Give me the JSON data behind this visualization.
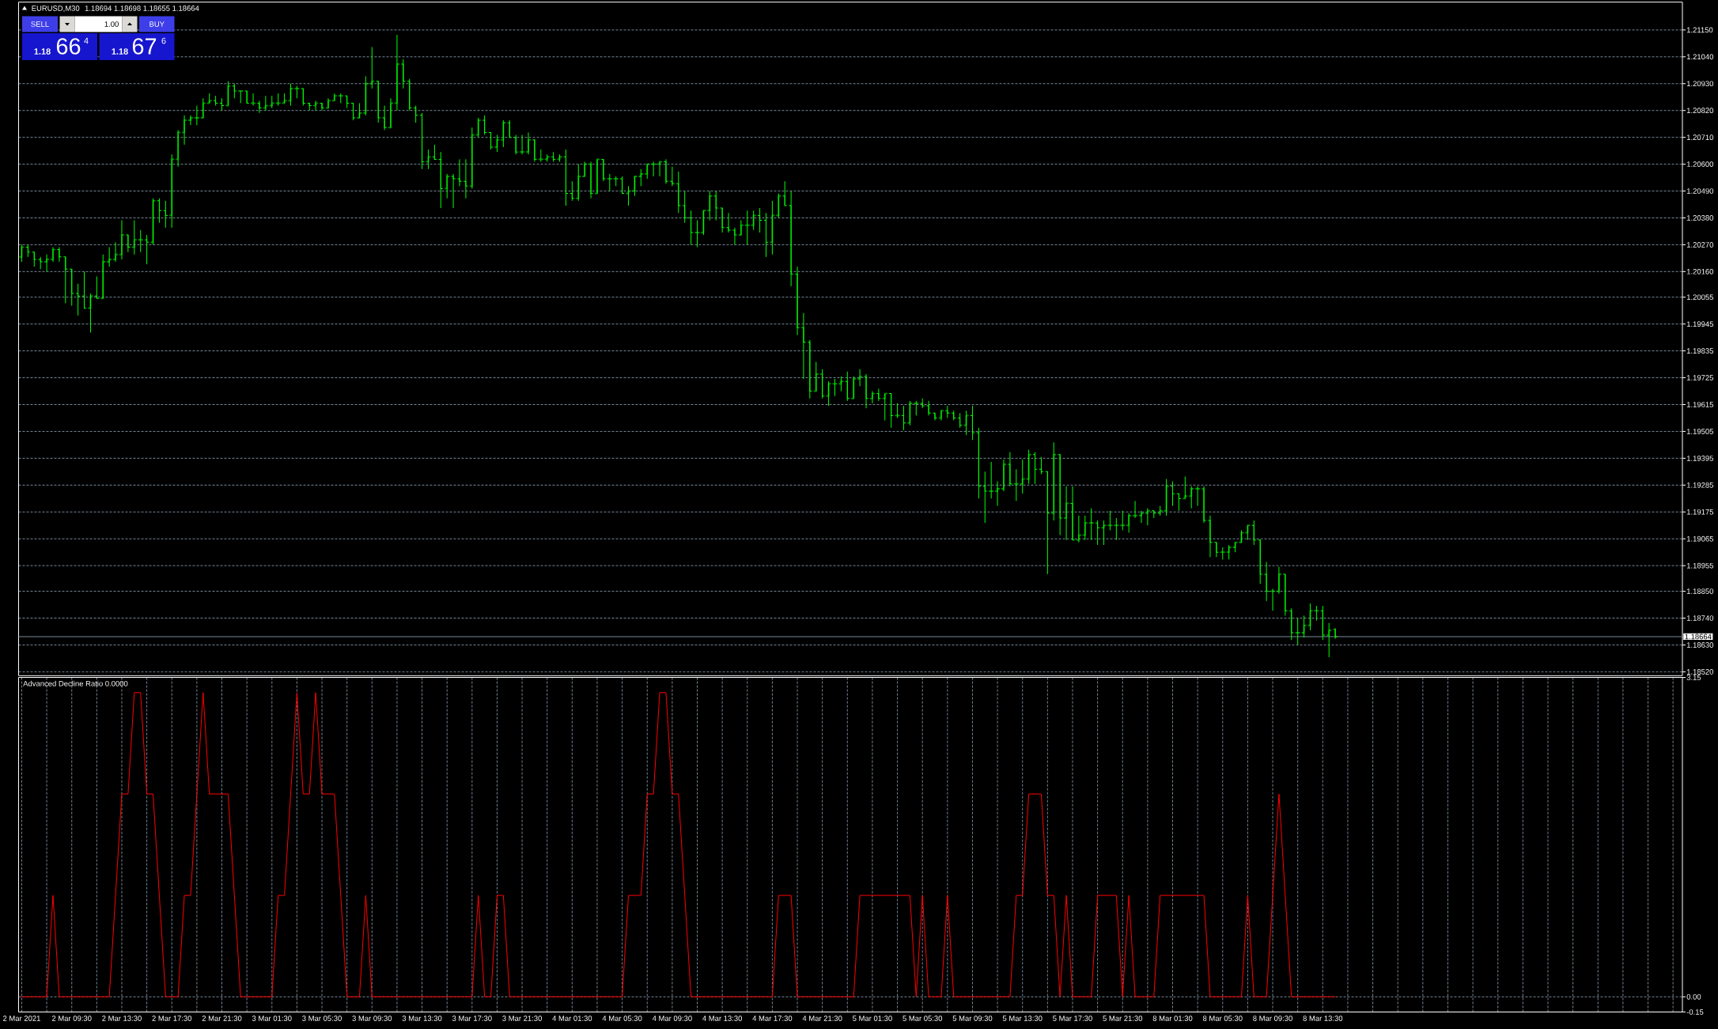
{
  "chart_data": [
    {
      "type": "candlestick",
      "title": "EURUSD,M30",
      "subtitle": "1.18694 1.18698 1.18655 1.18664",
      "categories": [
        null,
        null,
        null,
        null,
        null,
        null,
        null,
        null,
        null,
        null,
        null,
        null,
        null,
        null,
        null,
        null,
        null,
        null,
        null,
        null,
        null,
        null,
        null,
        null,
        null,
        null,
        null,
        null,
        null,
        null,
        null,
        null,
        null,
        null,
        null,
        null,
        null,
        null,
        null,
        null,
        null,
        null,
        null,
        null,
        null,
        null,
        null,
        null,
        null,
        null,
        null,
        null,
        null,
        null,
        null,
        null,
        null,
        null,
        null,
        null,
        null,
        null,
        null,
        null,
        null,
        null,
        null,
        null,
        null,
        null,
        null,
        null,
        null,
        null,
        null,
        null,
        null,
        null,
        null,
        null,
        null,
        null,
        null,
        null,
        null,
        null,
        null,
        null,
        null,
        null,
        null,
        null,
        null,
        null,
        null,
        null,
        null,
        null,
        null,
        null,
        null,
        null,
        null,
        null,
        null,
        null,
        null,
        null,
        null,
        null,
        null,
        null,
        null,
        null,
        null,
        null,
        null,
        null,
        null,
        null,
        null,
        null,
        null,
        null,
        null,
        null,
        null,
        null,
        null,
        null,
        null,
        null,
        null,
        null,
        null,
        null,
        null,
        null,
        null,
        null,
        null,
        null,
        null,
        null,
        null,
        null,
        null,
        null,
        null,
        null,
        null,
        null,
        null,
        null,
        null,
        null,
        null,
        null,
        null,
        null,
        null,
        null,
        null,
        null,
        null,
        null,
        null,
        null,
        null,
        null,
        null,
        null,
        null,
        null,
        null,
        null,
        null,
        null,
        null,
        null,
        null,
        null,
        null,
        null,
        null,
        null,
        null,
        null,
        null,
        null,
        null,
        null,
        null,
        null,
        null,
        null,
        null,
        null,
        null,
        null,
        null,
        null,
        null,
        null,
        null,
        null,
        null,
        null,
        null,
        null,
        null,
        null,
        null,
        null,
        null,
        null,
        null,
        null,
        null,
        null,
        null,
        null,
        null,
        null,
        null,
        null,
        null,
        null,
        null,
        null,
        null,
        null,
        null,
        null,
        null,
        null,
        null,
        null,
        null,
        null,
        null,
        null,
        null,
        null,
        null,
        null,
        null,
        null,
        null,
        null,
        null,
        null,
        null,
        null,
        null,
        null,
        null,
        null,
        null,
        null,
        null,
        null,
        null,
        null,
        null,
        null
      ],
      "ohlc": [
        [
          1.2022,
          1.2027,
          1.202,
          1.2026
        ],
        [
          1.2026,
          1.2027,
          1.2022,
          1.2024
        ],
        [
          1.2024,
          1.2024,
          1.2018,
          1.2021
        ],
        [
          1.2021,
          1.2022,
          1.2017,
          1.202
        ],
        [
          1.202,
          1.2023,
          1.2016,
          1.2021
        ],
        [
          1.2021,
          1.2026,
          1.202,
          1.2025
        ],
        [
          1.2025,
          1.2026,
          1.202,
          1.2022
        ],
        [
          1.2022,
          1.2022,
          1.2003,
          1.2017
        ],
        [
          1.2017,
          1.2017,
          1.2002,
          1.2007
        ],
        [
          1.2007,
          1.2011,
          1.1998,
          1.2006
        ],
        [
          1.2006,
          1.2016,
          1.2001,
          1.2001
        ],
        [
          1.2001,
          1.2007,
          1.1991,
          1.2006
        ],
        [
          1.2006,
          1.2014,
          1.2005,
          1.2005
        ],
        [
          1.2005,
          1.2023,
          1.2005,
          1.202
        ],
        [
          1.202,
          1.2026,
          1.2018,
          1.2021
        ],
        [
          1.2021,
          1.2028,
          1.202,
          1.2023
        ],
        [
          1.2023,
          1.2037,
          1.2021,
          1.2031
        ],
        [
          1.2031,
          1.2031,
          1.2024,
          1.2026
        ],
        [
          1.2026,
          1.2037,
          1.2023,
          1.2029
        ],
        [
          1.2029,
          1.2033,
          1.2024,
          1.2029
        ],
        [
          1.2029,
          1.2031,
          1.2019,
          1.2028
        ],
        [
          1.2028,
          1.2046,
          1.2027,
          1.2045
        ],
        [
          1.2045,
          1.2046,
          1.2036,
          1.2041
        ],
        [
          1.2041,
          1.2045,
          1.2034,
          1.2039
        ],
        [
          1.2039,
          1.2064,
          1.2034,
          1.2062
        ],
        [
          1.2062,
          1.2074,
          1.2059,
          1.2073
        ],
        [
          1.2073,
          1.208,
          1.2068,
          1.2078
        ],
        [
          1.2078,
          1.208,
          1.2076,
          1.2079
        ],
        [
          1.2079,
          1.2084,
          1.2076,
          1.2079
        ],
        [
          1.2079,
          1.2087,
          1.2079,
          1.2085
        ],
        [
          1.2085,
          1.2089,
          1.2085,
          1.2086
        ],
        [
          1.2086,
          1.2088,
          1.2084,
          1.2085
        ],
        [
          1.2085,
          1.2087,
          1.2082,
          1.2084
        ],
        [
          1.2084,
          1.2094,
          1.2084,
          1.2092
        ],
        [
          1.2092,
          1.2093,
          1.2087,
          1.209
        ],
        [
          1.209,
          1.209,
          1.2085,
          1.209
        ],
        [
          1.209,
          1.209,
          1.2085,
          1.2085
        ],
        [
          1.2085,
          1.2089,
          1.2084,
          1.2085
        ],
        [
          1.2085,
          1.2086,
          1.2081,
          1.2083
        ],
        [
          1.2083,
          1.2088,
          1.2082,
          1.2084
        ],
        [
          1.2084,
          1.2088,
          1.2083,
          1.2085
        ],
        [
          1.2085,
          1.2089,
          1.2084,
          1.2085
        ],
        [
          1.2085,
          1.2089,
          1.2085,
          1.2086
        ],
        [
          1.2086,
          1.2093,
          1.2084,
          1.2091
        ],
        [
          1.2091,
          1.2092,
          1.2087,
          1.2091
        ],
        [
          1.2091,
          1.2091,
          1.2084,
          1.2085
        ],
        [
          1.2085,
          1.2085,
          1.2082,
          1.2084
        ],
        [
          1.2084,
          1.2086,
          1.2082,
          1.2085
        ],
        [
          1.2085,
          1.2085,
          1.2082,
          1.2083
        ],
        [
          1.2083,
          1.2087,
          1.2083,
          1.2086
        ],
        [
          1.2086,
          1.2089,
          1.2086,
          1.2088
        ],
        [
          1.2088,
          1.2089,
          1.2085,
          1.2088
        ],
        [
          1.2088,
          1.2088,
          1.2083,
          1.2085
        ],
        [
          1.2085,
          1.2085,
          1.2078,
          1.2079
        ],
        [
          1.2079,
          1.2085,
          1.2079,
          1.2081
        ],
        [
          1.2081,
          1.2096,
          1.208,
          1.2093
        ],
        [
          1.2093,
          1.2108,
          1.2091,
          1.2094
        ],
        [
          1.2094,
          1.2094,
          1.2077,
          1.2079
        ],
        [
          1.2079,
          1.2084,
          1.2074,
          1.2075
        ],
        [
          1.2075,
          1.2087,
          1.2075,
          1.2085
        ],
        [
          1.2085,
          1.2113,
          1.2082,
          1.2101
        ],
        [
          1.2101,
          1.2103,
          1.2091,
          1.2094
        ],
        [
          1.2094,
          1.2095,
          1.2082,
          1.2083
        ],
        [
          1.2083,
          1.2084,
          1.2077,
          1.208
        ],
        [
          1.208,
          1.2081,
          1.2058,
          1.2061
        ],
        [
          1.2061,
          1.2066,
          1.2058,
          1.2063
        ],
        [
          1.2063,
          1.2068,
          1.2062,
          1.2062
        ],
        [
          1.2062,
          1.2065,
          1.2042,
          1.205
        ],
        [
          1.205,
          1.2056,
          1.2046,
          1.2055
        ],
        [
          1.2055,
          1.2056,
          1.2042,
          1.2054
        ],
        [
          1.2054,
          1.2062,
          1.2051,
          1.2053
        ],
        [
          1.2053,
          1.2062,
          1.2046,
          1.2051
        ],
        [
          1.2051,
          1.2075,
          1.205,
          1.2072
        ],
        [
          1.2072,
          1.2079,
          1.2071,
          1.2078
        ],
        [
          1.2078,
          1.208,
          1.2072,
          1.2073
        ],
        [
          1.2073,
          1.2073,
          1.2066,
          1.2067
        ],
        [
          1.2067,
          1.2072,
          1.2065,
          1.207
        ],
        [
          1.207,
          1.2078,
          1.2067,
          1.2077
        ],
        [
          1.2077,
          1.2078,
          1.2071,
          1.2071
        ],
        [
          1.2071,
          1.2072,
          1.2064,
          1.2065
        ],
        [
          1.2065,
          1.2072,
          1.2064,
          1.2065
        ],
        [
          1.2065,
          1.2073,
          1.2064,
          1.207
        ],
        [
          1.207,
          1.207,
          1.2061,
          1.2062
        ],
        [
          1.2062,
          1.2066,
          1.2061,
          1.2062
        ],
        [
          1.2062,
          1.2064,
          1.2061,
          1.2063
        ],
        [
          1.2063,
          1.2065,
          1.2061,
          1.2062
        ],
        [
          1.2062,
          1.2064,
          1.2061,
          1.2063
        ],
        [
          1.2063,
          1.2066,
          1.2043,
          1.2048
        ],
        [
          1.2048,
          1.2053,
          1.2045,
          1.2046
        ],
        [
          1.2046,
          1.206,
          1.2045,
          1.2055
        ],
        [
          1.2055,
          1.2061,
          1.2055,
          1.206
        ],
        [
          1.206,
          1.2061,
          1.2046,
          1.2048
        ],
        [
          1.2048,
          1.2062,
          1.2048,
          1.2062
        ],
        [
          1.2062,
          1.2062,
          1.2053,
          1.2054
        ],
        [
          1.2054,
          1.2056,
          1.2049,
          1.2054
        ],
        [
          1.2054,
          1.2055,
          1.2051,
          1.2054
        ],
        [
          1.2054,
          1.2055,
          1.2048,
          1.2048
        ],
        [
          1.2048,
          1.2051,
          1.2043,
          1.2049
        ],
        [
          1.2049,
          1.2055,
          1.2047,
          1.2055
        ],
        [
          1.2055,
          1.2058,
          1.2051,
          1.2056
        ],
        [
          1.2056,
          1.206,
          1.2054,
          1.206
        ],
        [
          1.206,
          1.2061,
          1.2055,
          1.206
        ],
        [
          1.206,
          1.2061,
          1.2055,
          1.2061
        ],
        [
          1.2061,
          1.2062,
          1.2052,
          1.2053
        ],
        [
          1.2053,
          1.2059,
          1.2051,
          1.2052
        ],
        [
          1.2052,
          1.2057,
          1.204,
          1.2043
        ],
        [
          1.2043,
          1.2049,
          1.2036,
          1.2038
        ],
        [
          1.2038,
          1.2041,
          1.2027,
          1.2032
        ],
        [
          1.2032,
          1.2037,
          1.2026,
          1.2032
        ],
        [
          1.2032,
          1.2041,
          1.2031,
          1.2041
        ],
        [
          1.2041,
          1.2049,
          1.2037,
          1.2047
        ],
        [
          1.2047,
          1.2049,
          1.2037,
          1.2042
        ],
        [
          1.2042,
          1.2042,
          1.2032,
          1.2034
        ],
        [
          1.2034,
          1.204,
          1.2032,
          1.2033
        ],
        [
          1.2033,
          1.2034,
          1.2027,
          1.2031
        ],
        [
          1.2031,
          1.2037,
          1.2031,
          1.2035
        ],
        [
          1.2035,
          1.2041,
          1.2027,
          1.2035
        ],
        [
          1.2035,
          1.2041,
          1.2033,
          1.2039
        ],
        [
          1.2039,
          1.2042,
          1.2032,
          1.2037
        ],
        [
          1.2037,
          1.204,
          1.2022,
          1.2028
        ],
        [
          1.2028,
          1.2045,
          1.2023,
          1.2039
        ],
        [
          1.2039,
          1.2048,
          1.2038,
          1.2047
        ],
        [
          1.2047,
          1.2053,
          1.2043,
          1.2043
        ],
        [
          1.2043,
          1.2049,
          1.201,
          1.2015
        ],
        [
          1.2015,
          1.2018,
          1.199,
          1.1993
        ],
        [
          1.1993,
          1.1999,
          1.1972,
          1.1987
        ],
        [
          1.1987,
          1.1988,
          1.1964,
          1.1967
        ],
        [
          1.1967,
          1.1979,
          1.1967,
          1.1974
        ],
        [
          1.1974,
          1.1976,
          1.1964,
          1.1965
        ],
        [
          1.1965,
          1.1971,
          1.1961,
          1.197
        ],
        [
          1.197,
          1.1972,
          1.1965,
          1.197
        ],
        [
          1.197,
          1.1973,
          1.1967,
          1.1971
        ],
        [
          1.1971,
          1.1975,
          1.1963,
          1.1964
        ],
        [
          1.1964,
          1.1973,
          1.1964,
          1.1972
        ],
        [
          1.1972,
          1.1976,
          1.1969,
          1.1973
        ],
        [
          1.1973,
          1.1974,
          1.196,
          1.1964
        ],
        [
          1.1964,
          1.1967,
          1.1962,
          1.1966
        ],
        [
          1.1966,
          1.1968,
          1.1963,
          1.1964
        ],
        [
          1.1964,
          1.1966,
          1.1955,
          1.1966
        ],
        [
          1.1966,
          1.1966,
          1.1952,
          1.1957
        ],
        [
          1.1957,
          1.1962,
          1.1956,
          1.1957
        ],
        [
          1.1957,
          1.1961,
          1.1951,
          1.1954
        ],
        [
          1.1954,
          1.1963,
          1.1953,
          1.1962
        ],
        [
          1.1962,
          1.1963,
          1.1957,
          1.1962
        ],
        [
          1.1962,
          1.1964,
          1.196,
          1.1961
        ],
        [
          1.1961,
          1.1963,
          1.1957,
          1.1958
        ],
        [
          1.1958,
          1.1958,
          1.1955,
          1.1956
        ],
        [
          1.1956,
          1.1959,
          1.1955,
          1.1959
        ],
        [
          1.1959,
          1.1961,
          1.1956,
          1.1958
        ],
        [
          1.1958,
          1.1959,
          1.1955,
          1.1956
        ],
        [
          1.1956,
          1.1958,
          1.1952,
          1.1953
        ],
        [
          1.1953,
          1.1959,
          1.1949,
          1.1957
        ],
        [
          1.1957,
          1.1961,
          1.1947,
          1.195
        ],
        [
          1.195,
          1.1952,
          1.1923,
          1.1928
        ],
        [
          1.1928,
          1.1934,
          1.1913,
          1.1926
        ],
        [
          1.1926,
          1.1938,
          1.1923,
          1.1926
        ],
        [
          1.1926,
          1.193,
          1.192,
          1.1927
        ],
        [
          1.1927,
          1.1939,
          1.1926,
          1.1937
        ],
        [
          1.1937,
          1.1942,
          1.1928,
          1.1929
        ],
        [
          1.1929,
          1.1935,
          1.1922,
          1.1929
        ],
        [
          1.1929,
          1.1939,
          1.1925,
          1.1931
        ],
        [
          1.1931,
          1.1943,
          1.1929,
          1.1941
        ],
        [
          1.1941,
          1.1942,
          1.1929,
          1.1935
        ],
        [
          1.1935,
          1.194,
          1.1933,
          1.1934
        ],
        [
          1.1934,
          1.1934,
          1.1892,
          1.1917
        ],
        [
          1.1917,
          1.1946,
          1.1914,
          1.1941
        ],
        [
          1.1941,
          1.1941,
          1.1908,
          1.1915
        ],
        [
          1.1915,
          1.1928,
          1.1906,
          1.1921
        ],
        [
          1.1921,
          1.1928,
          1.1906,
          1.1906
        ],
        [
          1.1906,
          1.1916,
          1.1905,
          1.1908
        ],
        [
          1.1908,
          1.1916,
          1.1906,
          1.1913
        ],
        [
          1.1913,
          1.1919,
          1.1906,
          1.1913
        ],
        [
          1.1913,
          1.1914,
          1.1904,
          1.1911
        ],
        [
          1.1911,
          1.1914,
          1.1904,
          1.1912
        ],
        [
          1.1912,
          1.1918,
          1.191,
          1.1912
        ],
        [
          1.1912,
          1.1915,
          1.1906,
          1.1912
        ],
        [
          1.1912,
          1.1918,
          1.191,
          1.1912
        ],
        [
          1.1912,
          1.1917,
          1.1909,
          1.1916
        ],
        [
          1.1916,
          1.1922,
          1.1915,
          1.1916
        ],
        [
          1.1916,
          1.1918,
          1.1913,
          1.1917
        ],
        [
          1.1917,
          1.1919,
          1.1912,
          1.1918
        ],
        [
          1.1918,
          1.1918,
          1.1915,
          1.1917
        ],
        [
          1.1917,
          1.192,
          1.1916,
          1.1918
        ],
        [
          1.1918,
          1.1931,
          1.1916,
          1.1928
        ],
        [
          1.1928,
          1.193,
          1.192,
          1.1925
        ],
        [
          1.1925,
          1.1925,
          1.1918,
          1.1923
        ],
        [
          1.1923,
          1.1932,
          1.1923,
          1.1924
        ],
        [
          1.1924,
          1.1928,
          1.1919,
          1.1927
        ],
        [
          1.1927,
          1.1928,
          1.192,
          1.1927
        ],
        [
          1.1927,
          1.1928,
          1.1913,
          1.1914
        ],
        [
          1.1914,
          1.1916,
          1.1899,
          1.1905
        ],
        [
          1.1905,
          1.1905,
          1.1899,
          1.1901
        ],
        [
          1.1901,
          1.1903,
          1.1898,
          1.1901
        ],
        [
          1.1901,
          1.1904,
          1.1898,
          1.1903
        ],
        [
          1.1903,
          1.1905,
          1.1901,
          1.1905
        ],
        [
          1.1905,
          1.191,
          1.1905,
          1.1909
        ],
        [
          1.1909,
          1.1912,
          1.1906,
          1.1912
        ],
        [
          1.1912,
          1.1914,
          1.1904,
          1.1906
        ],
        [
          1.1906,
          1.1906,
          1.1888,
          1.1892
        ],
        [
          1.1892,
          1.1897,
          1.1881,
          1.1885
        ],
        [
          1.1885,
          1.1886,
          1.1877,
          1.1885
        ],
        [
          1.1885,
          1.1895,
          1.1884,
          1.1892
        ],
        [
          1.1892,
          1.1892,
          1.1875,
          1.1877
        ],
        [
          1.1877,
          1.1878,
          1.1865,
          1.1868
        ],
        [
          1.1868,
          1.1874,
          1.1863,
          1.1868
        ],
        [
          1.1868,
          1.1875,
          1.1866,
          1.1871
        ],
        [
          1.1871,
          1.188,
          1.1869,
          1.1877
        ],
        [
          1.1877,
          1.1879,
          1.1873,
          1.1877
        ],
        [
          1.1877,
          1.1879,
          1.1865,
          1.1867
        ],
        [
          1.1867,
          1.1872,
          1.1858,
          1.1869
        ],
        [
          1.18694,
          1.18698,
          1.18655,
          1.18664
        ],
        null,
        null,
        null,
        null,
        null,
        null,
        null,
        null,
        null,
        null,
        null,
        null,
        null,
        null,
        null,
        null,
        null,
        null,
        null,
        null,
        null,
        null,
        null,
        null,
        null,
        null,
        null,
        null,
        null,
        null,
        null,
        null,
        null,
        null,
        null,
        null,
        null,
        null,
        null,
        null,
        null,
        null,
        null,
        null,
        null,
        null,
        null,
        null,
        null,
        null,
        null,
        null,
        null,
        null,
        null
      ],
      "color": "#00ff00",
      "ylim": [
        1.18504,
        1.21264
      ],
      "yticks": [
        {
          "value": 1.2115,
          "label": "1.21150"
        },
        {
          "value": 1.2104,
          "label": "1.21040"
        },
        {
          "value": 1.2093,
          "label": "1.20930"
        },
        {
          "value": 1.2082,
          "label": "1.20820"
        },
        {
          "value": 1.2071,
          "label": "1.20710"
        },
        {
          "value": 1.206,
          "label": "1.20600"
        },
        {
          "value": 1.2049,
          "label": "1.20490"
        },
        {
          "value": 1.2038,
          "label": "1.20380"
        },
        {
          "value": 1.2027,
          "label": "1.20270"
        },
        {
          "value": 1.2016,
          "label": "1.20160"
        },
        {
          "value": 1.20055,
          "label": "1.20055"
        },
        {
          "value": 1.19945,
          "label": "1.19945"
        },
        {
          "value": 1.19835,
          "label": "1.19835"
        },
        {
          "value": 1.19725,
          "label": "1.19725"
        },
        {
          "value": 1.19615,
          "label": "1.19615"
        },
        {
          "value": 1.19505,
          "label": "1.19505"
        },
        {
          "value": 1.19395,
          "label": "1.19395"
        },
        {
          "value": 1.19285,
          "label": "1.19285"
        },
        {
          "value": 1.19175,
          "label": "1.19175"
        },
        {
          "value": 1.19065,
          "label": "1.19065"
        },
        {
          "value": 1.18955,
          "label": "1.18955"
        },
        {
          "value": 1.1885,
          "label": "1.18850"
        },
        {
          "value": 1.1874,
          "label": "1.18740"
        },
        {
          "value": 1.1863,
          "label": "1.18630"
        },
        {
          "value": 1.1852,
          "label": "1.18520"
        }
      ],
      "grid": true,
      "ref_lines": [
        {
          "axis": "y",
          "value": 1.18664,
          "label": "1.18664",
          "color": "#778899"
        }
      ],
      "annotations": [
        "SELL",
        "1.00",
        "BUY",
        "1.18",
        "66",
        "4",
        "1.18",
        "67",
        "6"
      ]
    },
    {
      "type": "line",
      "title": "Advanced Decline Ratio 0.0000",
      "categories": [
        "2 Mar 2021",
        null,
        null,
        null,
        null,
        null,
        null,
        null,
        "2 Mar 09:30",
        null,
        null,
        null,
        null,
        null,
        null,
        null,
        "2 Mar 13:30",
        null,
        null,
        null,
        null,
        null,
        null,
        null,
        "2 Mar 17:30",
        null,
        null,
        null,
        null,
        null,
        null,
        null,
        "2 Mar 21:30",
        null,
        null,
        null,
        null,
        null,
        null,
        null,
        "3 Mar 01:30",
        null,
        null,
        null,
        null,
        null,
        null,
        null,
        "3 Mar 05:30",
        null,
        null,
        null,
        null,
        null,
        null,
        null,
        "3 Mar 09:30",
        null,
        null,
        null,
        null,
        null,
        null,
        null,
        "3 Mar 13:30",
        null,
        null,
        null,
        null,
        null,
        null,
        null,
        "3 Mar 17:30",
        null,
        null,
        null,
        null,
        null,
        null,
        null,
        "3 Mar 21:30",
        null,
        null,
        null,
        null,
        null,
        null,
        null,
        "4 Mar 01:30",
        null,
        null,
        null,
        null,
        null,
        null,
        null,
        "4 Mar 05:30",
        null,
        null,
        null,
        null,
        null,
        null,
        null,
        "4 Mar 09:30",
        null,
        null,
        null,
        null,
        null,
        null,
        null,
        "4 Mar 13:30",
        null,
        null,
        null,
        null,
        null,
        null,
        null,
        "4 Mar 17:30",
        null,
        null,
        null,
        null,
        null,
        null,
        null,
        "4 Mar 21:30",
        null,
        null,
        null,
        null,
        null,
        null,
        null,
        "5 Mar 01:30",
        null,
        null,
        null,
        null,
        null,
        null,
        null,
        "5 Mar 05:30",
        null,
        null,
        null,
        null,
        null,
        null,
        null,
        "5 Mar 09:30",
        null,
        null,
        null,
        null,
        null,
        null,
        null,
        "5 Mar 13:30",
        null,
        null,
        null,
        null,
        null,
        null,
        null,
        "5 Mar 17:30",
        null,
        null,
        null,
        null,
        null,
        null,
        null,
        "5 Mar 21:30",
        null,
        null,
        null,
        null,
        null,
        null,
        null,
        "8 Mar 01:30",
        null,
        null,
        null,
        null,
        null,
        null,
        null,
        "8 Mar 05:30",
        null,
        null,
        null,
        null,
        null,
        null,
        null,
        "8 Mar 09:30",
        null,
        null,
        null,
        null,
        null,
        null,
        null,
        "8 Mar 13:30",
        null,
        null,
        null,
        null,
        null,
        null,
        null,
        null,
        null,
        null,
        null,
        null,
        null,
        null,
        null,
        null,
        null,
        null,
        null,
        null,
        null,
        null,
        null,
        null,
        null,
        null,
        null,
        null,
        null,
        null,
        null,
        null,
        null,
        null,
        null,
        null,
        null,
        null,
        null,
        null,
        null,
        null,
        null,
        null,
        null,
        null,
        null,
        null,
        null,
        null,
        null,
        null,
        null,
        null,
        null,
        null,
        null
      ],
      "values": [
        0,
        0,
        0,
        0,
        0,
        1,
        0,
        0,
        0,
        0,
        0,
        0,
        0,
        0,
        0,
        1,
        2,
        2,
        3,
        3,
        2,
        2,
        1,
        0,
        0,
        0,
        1,
        1,
        2,
        3,
        2,
        2,
        2,
        2,
        1,
        0,
        0,
        0,
        0,
        0,
        0,
        1,
        1,
        2,
        3,
        2,
        2,
        3,
        2,
        2,
        2,
        1,
        0,
        0,
        0,
        1,
        0,
        0,
        0,
        0,
        0,
        0,
        0,
        0,
        0,
        0,
        0,
        0,
        0,
        0,
        0,
        0,
        0,
        1,
        0,
        0,
        1,
        1,
        0,
        0,
        0,
        0,
        0,
        0,
        0,
        0,
        0,
        0,
        0,
        0,
        0,
        0,
        0,
        0,
        0,
        0,
        0,
        1,
        1,
        1,
        2,
        2,
        3,
        3,
        2,
        2,
        1,
        0,
        0,
        0,
        0,
        0,
        0,
        0,
        0,
        0,
        0,
        0,
        0,
        0,
        0,
        1,
        1,
        1,
        0,
        0,
        0,
        0,
        0,
        0,
        0,
        0,
        0,
        0,
        1,
        1,
        1,
        1,
        1,
        1,
        1,
        1,
        1,
        0,
        1,
        0,
        0,
        0,
        1,
        0,
        0,
        0,
        0,
        0,
        0,
        0,
        0,
        0,
        0,
        1,
        1,
        2,
        2,
        2,
        1,
        1,
        0,
        1,
        0,
        0,
        0,
        0,
        1,
        1,
        1,
        1,
        0,
        1,
        0,
        0,
        0,
        0,
        1,
        1,
        1,
        1,
        1,
        1,
        1,
        1,
        0,
        0,
        0,
        0,
        0,
        0,
        1,
        0,
        0,
        0,
        1,
        2,
        1,
        0,
        0,
        0,
        0,
        0,
        0,
        0,
        0,
        null,
        null,
        null,
        null,
        null,
        null,
        null,
        null,
        null,
        null,
        null,
        null,
        null,
        null,
        null,
        null,
        null,
        null,
        null,
        null,
        null,
        null,
        null,
        null,
        null,
        null,
        null,
        null,
        null,
        null,
        null,
        null,
        null,
        null,
        null,
        null,
        null,
        null,
        null,
        null,
        null,
        null,
        null,
        null,
        null,
        null,
        null,
        null,
        null,
        null,
        null,
        null,
        null,
        null,
        null
      ],
      "color": "#ff0000",
      "ylim": [
        -0.15,
        3.15
      ],
      "yticks": [
        {
          "value": 3.15,
          "label": "3.15"
        },
        {
          "value": 0,
          "label": "0.00"
        },
        {
          "value": -0.15,
          "label": "-0.15"
        }
      ],
      "grid": true
    }
  ]
}
